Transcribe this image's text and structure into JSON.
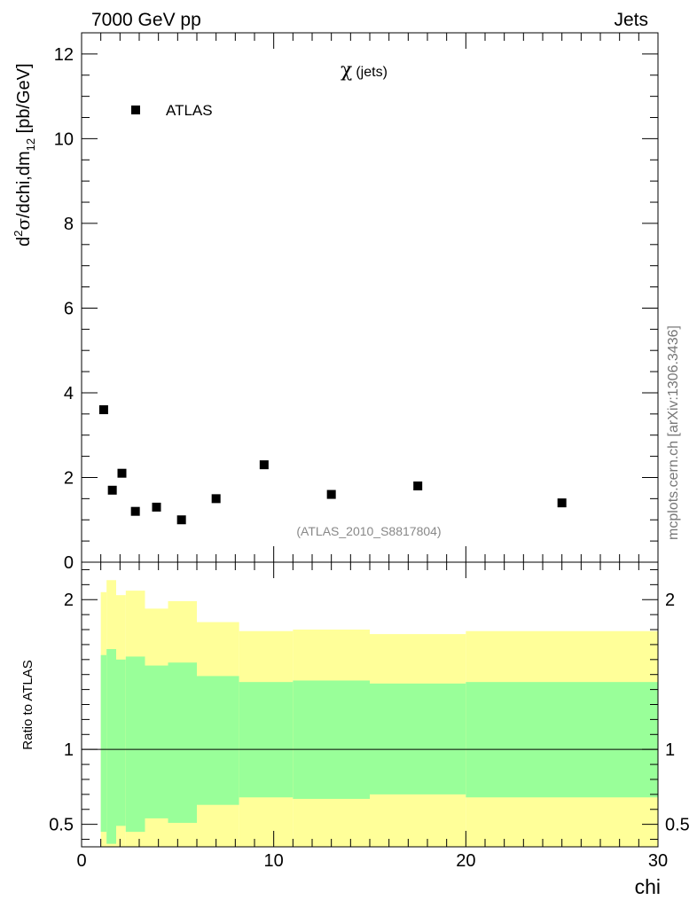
{
  "header": {
    "left": "7000 GeV pp",
    "right": "Jets"
  },
  "side_label": "mcplots.cern.ch [arXiv:1306.3436]",
  "chart_data": {
    "type": "scatter",
    "main": {
      "title_symbol": "χ",
      "title_text": "(jets)",
      "reference": "(ATLAS_2010_S8817804)",
      "ylabel_parts": {
        "d": "d",
        "sup2": "2",
        "sigma": "σ",
        "mid": "/dchi,dm",
        "sub12": "12",
        "unit": " [pb/GeV]"
      },
      "xlim": [
        0,
        30
      ],
      "ylim": [
        0,
        12.5
      ],
      "yticks": [
        0,
        2,
        4,
        6,
        8,
        10,
        12
      ],
      "ytick_labels": [
        "0",
        "2",
        "4",
        "6",
        "8",
        "10",
        "12"
      ],
      "legend": {
        "label": "ATLAS",
        "marker": "square",
        "color": "#000000"
      },
      "series": [
        {
          "name": "ATLAS",
          "points": [
            {
              "x": 1.15,
              "y": 3.6
            },
            {
              "x": 1.6,
              "y": 1.7
            },
            {
              "x": 2.1,
              "y": 2.1
            },
            {
              "x": 2.8,
              "y": 1.2
            },
            {
              "x": 3.9,
              "y": 1.3
            },
            {
              "x": 5.2,
              "y": 1.0
            },
            {
              "x": 7.0,
              "y": 1.5
            },
            {
              "x": 9.5,
              "y": 2.3
            },
            {
              "x": 13.0,
              "y": 1.6
            },
            {
              "x": 17.5,
              "y": 1.8
            },
            {
              "x": 25.0,
              "y": 1.4
            }
          ]
        }
      ]
    },
    "ratio": {
      "ylabel": "Ratio to ATLAS",
      "xlabel": "chi",
      "xlim": [
        0,
        30
      ],
      "ylim": [
        0.35,
        2.25
      ],
      "yticks": [
        0.5,
        1,
        2
      ],
      "ytick_labels": [
        "0.5",
        "1",
        "2"
      ],
      "xticks": [
        0,
        10,
        20,
        30
      ],
      "xtick_labels": [
        "0",
        "10",
        "20",
        "30"
      ],
      "reference_line": 1.0,
      "bins": [
        {
          "x0": 1.0,
          "x1": 1.3,
          "yellow_lo": 0.35,
          "yellow_hi": 2.05,
          "green_lo": 0.45,
          "green_hi": 1.63
        },
        {
          "x0": 1.3,
          "x1": 1.8,
          "yellow_lo": 0.35,
          "yellow_hi": 2.13,
          "green_lo": 0.37,
          "green_hi": 1.67
        },
        {
          "x0": 1.8,
          "x1": 2.3,
          "yellow_lo": 0.35,
          "yellow_hi": 2.03,
          "green_lo": 0.49,
          "green_hi": 1.6
        },
        {
          "x0": 2.3,
          "x1": 3.3,
          "yellow_lo": 0.35,
          "yellow_hi": 2.06,
          "green_lo": 0.45,
          "green_hi": 1.62
        },
        {
          "x0": 3.3,
          "x1": 4.5,
          "yellow_lo": 0.35,
          "yellow_hi": 1.94,
          "green_lo": 0.54,
          "green_hi": 1.56
        },
        {
          "x0": 4.5,
          "x1": 6.0,
          "yellow_lo": 0.35,
          "yellow_hi": 1.99,
          "green_lo": 0.51,
          "green_hi": 1.58
        },
        {
          "x0": 6.0,
          "x1": 8.2,
          "yellow_lo": 0.35,
          "yellow_hi": 1.85,
          "green_lo": 0.63,
          "green_hi": 1.49
        },
        {
          "x0": 8.2,
          "x1": 11.0,
          "yellow_lo": 0.35,
          "yellow_hi": 1.79,
          "green_lo": 0.68,
          "green_hi": 1.45
        },
        {
          "x0": 11.0,
          "x1": 15.0,
          "yellow_lo": 0.35,
          "yellow_hi": 1.8,
          "green_lo": 0.67,
          "green_hi": 1.46
        },
        {
          "x0": 15.0,
          "x1": 20.0,
          "yellow_lo": 0.35,
          "yellow_hi": 1.77,
          "green_lo": 0.7,
          "green_hi": 1.44
        },
        {
          "x0": 20.0,
          "x1": 30.0,
          "yellow_lo": 0.35,
          "yellow_hi": 1.79,
          "green_lo": 0.68,
          "green_hi": 1.45
        }
      ],
      "colors": {
        "yellow": "#ffff99",
        "green": "#99ff99",
        "line": "#000000"
      }
    }
  }
}
